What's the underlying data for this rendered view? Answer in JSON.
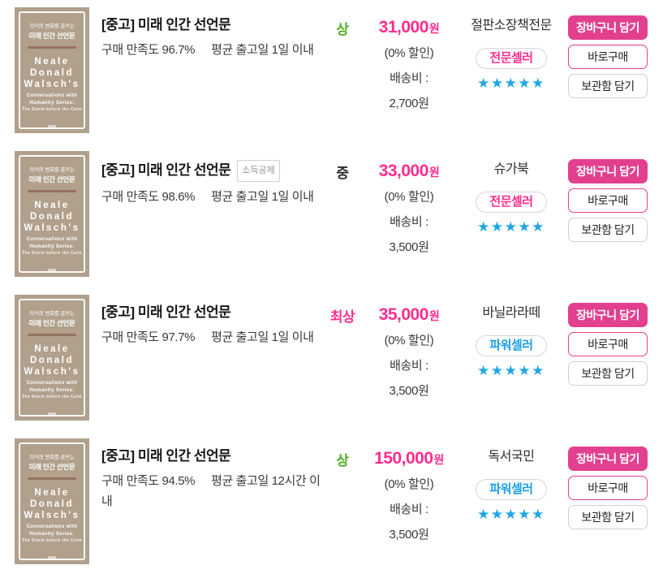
{
  "colors": {
    "accent_pink": "#ff2c8f",
    "button_pink": "#e2408f",
    "star_blue": "#1ea6e6",
    "power_seller_blue": "#1b9fe3",
    "condition_green": "#4fae21",
    "condition_dark": "#2b2b2b",
    "cover_tan": "#b1a08c"
  },
  "cover": {
    "overline": "의식의 변화를 꿈꾸는",
    "title": "미래 인간 선언문",
    "author_lines": [
      "Neale",
      "Donald",
      "Walsch's"
    ],
    "series_lines": [
      "Conversations with",
      "Humanity Series:",
      "The Storm before the Calm"
    ]
  },
  "buttons": {
    "add_to_cart": "장바구니 담기",
    "buy_now": "바로구매",
    "save_for_later": "보관함 담기"
  },
  "rows": [
    {
      "title": "[중고] 미래 인간 선언문",
      "satisfaction": "구매 만족도 96.7%",
      "shipping": "평균 출고일 1일 이내",
      "condition": "상",
      "price": "31,000",
      "price_unit": "원",
      "discount": "(0% 할인)",
      "shipping_fee_label": "배송비 :",
      "shipping_fee": "2,700원",
      "seller": "절판소장책전문",
      "seller_badge": "전문셀러",
      "rating": 5
    },
    {
      "title": "[중고] 미래 인간 선언문",
      "tax_badge": "소득공제",
      "satisfaction": "구매 만족도 98.6%",
      "shipping": "평균 출고일 1일 이내",
      "condition": "중",
      "price": "33,000",
      "price_unit": "원",
      "discount": "(0% 할인)",
      "shipping_fee_label": "배송비 :",
      "shipping_fee": "3,500원",
      "seller": "슈가북",
      "seller_badge": "전문셀러",
      "rating": 5
    },
    {
      "title": "[중고] 미래 인간 선언문",
      "satisfaction": "구매 만족도 97.7%",
      "shipping": "평균 출고일 1일 이내",
      "condition": "최상",
      "price": "35,000",
      "price_unit": "원",
      "discount": "(0% 할인)",
      "shipping_fee_label": "배송비 :",
      "shipping_fee": "3,500원",
      "seller": "바닐라라떼",
      "seller_badge": "파워셀러",
      "rating": 5
    },
    {
      "title": "[중고] 미래 인간 선언문",
      "satisfaction": "구매 만족도 94.5%",
      "shipping": "평균 출고일 12시간 이내",
      "condition": "상",
      "price": "150,000",
      "price_unit": "원",
      "discount": "(0% 할인)",
      "shipping_fee_label": "배송비 :",
      "shipping_fee": "3,500원",
      "seller": "독서국민",
      "seller_badge": "파워셀러",
      "rating": 5
    }
  ]
}
